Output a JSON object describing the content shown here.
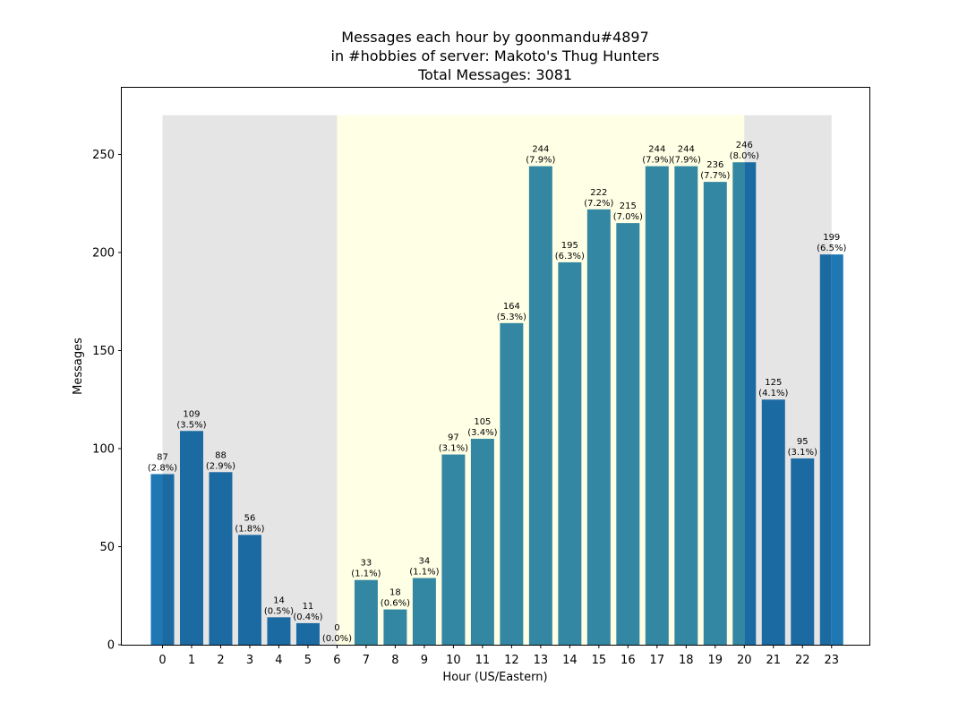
{
  "chart_data": {
    "type": "bar",
    "title_lines": [
      "Messages each hour by goonmandu#4897",
      "in #hobbies of server: Makoto's Thug Hunters",
      "Total Messages: 3081"
    ],
    "xlabel": "Hour (US/Eastern)",
    "ylabel": "Messages",
    "categories": [
      "0",
      "1",
      "2",
      "3",
      "4",
      "5",
      "6",
      "7",
      "8",
      "9",
      "10",
      "11",
      "12",
      "13",
      "14",
      "15",
      "16",
      "17",
      "18",
      "19",
      "20",
      "21",
      "22",
      "23"
    ],
    "values": [
      87,
      109,
      88,
      56,
      14,
      11,
      0,
      33,
      18,
      34,
      97,
      105,
      164,
      244,
      195,
      222,
      215,
      244,
      244,
      236,
      246,
      125,
      95,
      199
    ],
    "value_labels": [
      [
        "87",
        "(2.8%)"
      ],
      [
        "109",
        "(3.5%)"
      ],
      [
        "88",
        "(2.9%)"
      ],
      [
        "56",
        "(1.8%)"
      ],
      [
        "14",
        "(0.5%)"
      ],
      [
        "11",
        "(0.4%)"
      ],
      [
        "0",
        "(0.0%)"
      ],
      [
        "33",
        "(1.1%)"
      ],
      [
        "18",
        "(0.6%)"
      ],
      [
        "34",
        "(1.1%)"
      ],
      [
        "97",
        "(3.1%)"
      ],
      [
        "105",
        "(3.4%)"
      ],
      [
        "164",
        "(5.3%)"
      ],
      [
        "244",
        "(7.9%)"
      ],
      [
        "195",
        "(6.3%)"
      ],
      [
        "222",
        "(7.2%)"
      ],
      [
        "215",
        "(7.0%)"
      ],
      [
        "244",
        "(7.9%)"
      ],
      [
        "244",
        "(7.9%)"
      ],
      [
        "236",
        "(7.7%)"
      ],
      [
        "246",
        "(8.0%)"
      ],
      [
        "125",
        "(4.1%)"
      ],
      [
        "95",
        "(3.1%)"
      ],
      [
        "199",
        "(6.5%)"
      ]
    ],
    "ylim": [
      0,
      284
    ],
    "yticks": [
      0,
      50,
      100,
      150,
      200,
      250
    ],
    "xlim": [
      -1.4,
      24.3
    ],
    "grid": false,
    "legend": "none",
    "shading": [
      {
        "x_start": 0,
        "x_end": 6,
        "color": "#e5e5e5"
      },
      {
        "x_start": 6,
        "x_end": 20,
        "color": "#ffffe5"
      },
      {
        "x_start": 20,
        "x_end": 23,
        "color": "#e5e5e5"
      }
    ],
    "shading_top": 270,
    "colors": {
      "bar": "#1f77b4",
      "bar_on_gray": "#1c6aa2",
      "bar_on_yellow": "#3487a2"
    }
  }
}
